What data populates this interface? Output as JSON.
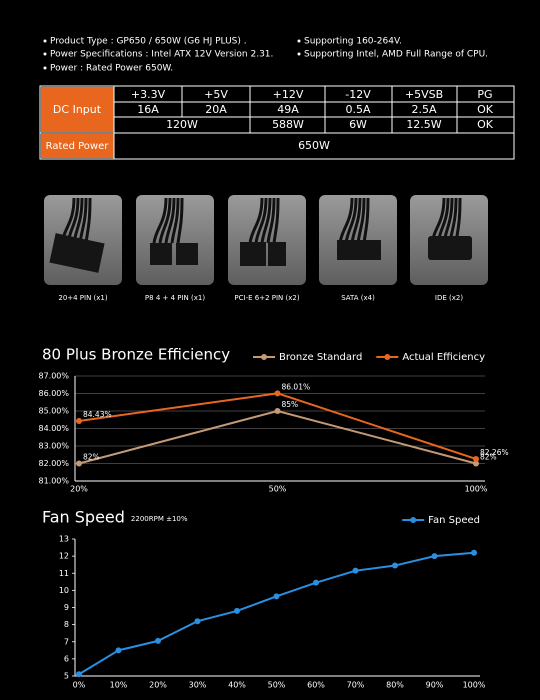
{
  "specs": [
    "Product Type : GP650 / 650W (G6 HJ PLUS) .",
    "Power Specifications : Intel ATX 12V Version 2.31.",
    "Power : Rated Power 650W.",
    "Supporting 160-264V.",
    "Supporting Intel, AMD Full Range of CPU."
  ],
  "table": {
    "row_headers": [
      "DC Input",
      "Rated Power"
    ],
    "rows": [
      [
        "+3.3V",
        "+5V",
        "+12V",
        "-12V",
        "+5VSB",
        "PG"
      ],
      [
        "16A",
        "20A",
        "49A",
        "0.5A",
        "2.5A",
        "OK"
      ],
      [
        "120W",
        "588W",
        "6W",
        "12.5W",
        "OK"
      ],
      [
        "650W"
      ]
    ]
  },
  "connectors": [
    "20+4 PIN (x1)",
    "P8 4 + 4 PIN (x1)",
    "PCI-E 6+2 PIN (x2)",
    "SATA (x4)",
    "IDE (x2)"
  ],
  "chart_data": [
    {
      "type": "line",
      "title": "80 Plus Bronze Efficiency",
      "categories": [
        "20%",
        "50%",
        "100%"
      ],
      "series": [
        {
          "name": "Bronze Standard",
          "color": "#c49a74",
          "values": [
            82,
            85,
            82
          ],
          "value_labels": [
            "82%",
            "85%",
            "82%"
          ]
        },
        {
          "name": "Actual Efficiency",
          "color": "#e8661e",
          "values": [
            84.43,
            86.01,
            82.26
          ],
          "value_labels": [
            "84.43%",
            "86.01%",
            "82.26%"
          ]
        }
      ],
      "ylim": [
        81,
        87
      ],
      "yticks": [
        {
          "value": 81,
          "label": "81.00%"
        },
        {
          "value": 82,
          "label": "82.00%"
        },
        {
          "value": 83,
          "label": "83.00%"
        },
        {
          "value": 84,
          "label": "84.00%"
        },
        {
          "value": 85,
          "label": "85.00%"
        },
        {
          "value": 86,
          "label": "86.00%"
        },
        {
          "value": 87,
          "label": "87.00%"
        }
      ],
      "grid": true,
      "legend": "top-right"
    },
    {
      "type": "line",
      "title": "Fan Speed",
      "subtitle": "2200RPM ±10%",
      "categories": [
        "0%",
        "10%",
        "20%",
        "30%",
        "40%",
        "50%",
        "60%",
        "70%",
        "80%",
        "90%",
        "100%"
      ],
      "series": [
        {
          "name": "Fan Speed",
          "color": "#2a8fe0",
          "values": [
            5.1,
            6.5,
            7.05,
            8.2,
            8.8,
            9.65,
            10.45,
            11.15,
            11.45,
            12.0,
            12.2
          ]
        }
      ],
      "ylim": [
        5,
        13
      ],
      "yticks": [
        5,
        6,
        7,
        8,
        9,
        10,
        11,
        12,
        13
      ],
      "grid": false,
      "legend": "top-right"
    }
  ]
}
